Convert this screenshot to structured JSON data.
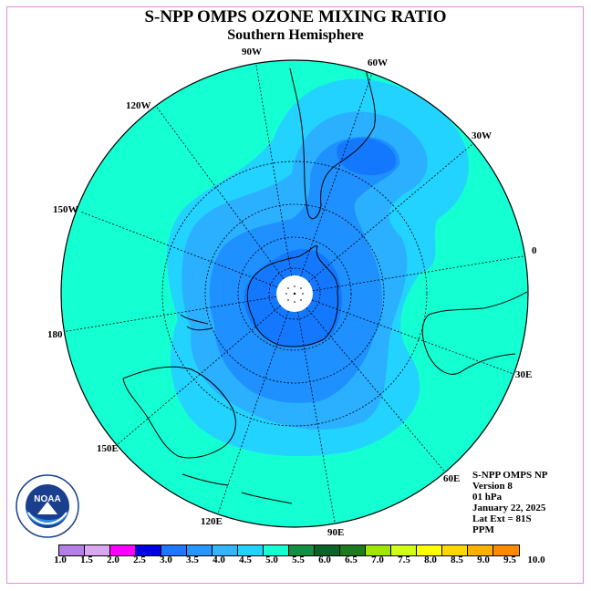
{
  "title": "S-NPP OMPS OZONE MIXING RATIO",
  "subtitle": "Southern Hemisphere",
  "longitude_labels": {
    "lon_90w": "90W",
    "lon_60w": "60W",
    "lon_30w": "30W",
    "lon_0": "0",
    "lon_30e": "30E",
    "lon_60e": "60E",
    "lon_90e": "90E",
    "lon_120e": "120E",
    "lon_150e": "150E",
    "lon_180": "180",
    "lon_150w": "150W",
    "lon_120w": "120W"
  },
  "info": {
    "instrument": "S-NPP OMPS NP",
    "version": "Version 8",
    "pressure": "01 hPa",
    "date": "January 22, 2025",
    "lat_ext": "Lat Ext = 81S",
    "units": "PPM"
  },
  "logo": {
    "text": "NOAA"
  },
  "colorbar": {
    "colors": [
      "#b57fe8",
      "#d9a6f0",
      "#ff00ff",
      "#0000e6",
      "#1e78ff",
      "#2896ff",
      "#32b4ff",
      "#22d2ff",
      "#14ffd2",
      "#109040",
      "#0a6428",
      "#1e7a1e",
      "#a0e600",
      "#d2ff14",
      "#ffff00",
      "#ffd700",
      "#ffb000",
      "#ff8a00",
      "#ff0000",
      "#8b4a28"
    ],
    "tick_labels": [
      "1.0",
      "1.5",
      "2.0",
      "2.5",
      "3.0",
      "3.5",
      "4.0",
      "4.5",
      "5.0",
      "5.5",
      "6.0",
      "6.5",
      "7.0",
      "7.5",
      "8.0",
      "8.5",
      "9.0",
      "9.5",
      "10.0"
    ]
  },
  "field_colors": {
    "level_4_5_to_5": "#14ffd2",
    "level_4_to_4_5": "#22d2ff",
    "level_3_5_to_4": "#2ab0ff",
    "level_3_to_3_5": "#1e90ff",
    "level_2_5_to_3": "#1478ff",
    "pole_mask": "#ffffff"
  }
}
